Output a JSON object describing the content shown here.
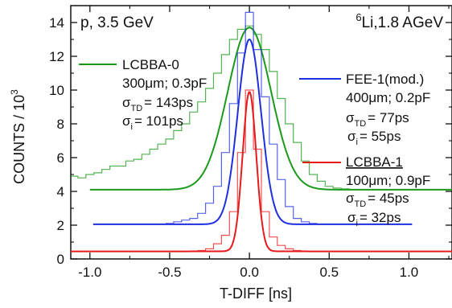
{
  "chart_data": {
    "type": "line",
    "title": "",
    "xlabel": "T-DIFF [ns]",
    "ylabel": "COUNTS / 10",
    "ylabel_exponent": "3",
    "xlim": [
      -1.12,
      1.27
    ],
    "ylim": [
      0,
      15
    ],
    "x_ticks": [
      -1.0,
      -0.5,
      0.0,
      0.5,
      1.0
    ],
    "x_tick_labels": [
      "-1.0",
      "-0.5",
      "0.0",
      "0.5",
      "1.0"
    ],
    "y_ticks": [
      0,
      2,
      4,
      6,
      8,
      10,
      12,
      14
    ],
    "y_tick_labels": [
      "0",
      "2",
      "4",
      "6",
      "8",
      "10",
      "12",
      "14"
    ],
    "grid": false,
    "series": [
      {
        "name": "LCBBA-0",
        "color": "#1a9a1a",
        "baseline": 4.1,
        "fit_peak": 13.7,
        "fit_center": 0.0,
        "fit_sigma_ns": 0.143,
        "fit_x_range": [
          -1.0,
          1.27
        ],
        "hist_x": [
          -1.1,
          -1.05,
          -1.0,
          -0.95,
          -0.9,
          -0.85,
          -0.8,
          -0.75,
          -0.7,
          -0.65,
          -0.6,
          -0.55,
          -0.5,
          -0.45,
          -0.4,
          -0.35,
          -0.3,
          -0.25,
          -0.2,
          -0.15,
          -0.1,
          -0.05,
          0.0,
          0.05,
          0.1,
          0.15,
          0.2,
          0.25,
          0.3,
          0.35,
          0.4,
          0.45,
          0.5,
          0.55,
          0.6,
          0.65,
          0.7,
          0.75,
          0.8,
          0.85,
          0.9,
          0.95,
          1.0,
          1.05,
          1.1,
          1.15,
          1.2,
          1.27
        ],
        "hist_y": [
          4.9,
          4.8,
          5.0,
          5.1,
          5.3,
          5.5,
          5.5,
          5.8,
          5.9,
          6.2,
          6.5,
          6.8,
          7.1,
          7.6,
          8.0,
          8.7,
          9.3,
          10.1,
          11.0,
          12.1,
          13.0,
          13.6,
          13.8,
          13.3,
          12.4,
          11.1,
          9.5,
          8.0,
          6.9,
          5.8,
          5.0,
          4.6,
          4.3,
          4.2,
          4.15,
          4.1,
          4.1,
          4.1,
          4.1,
          4.1,
          4.1,
          4.1,
          4.1,
          4.1,
          4.1,
          4.1,
          4.1,
          4.1
        ]
      },
      {
        "name": "FEE-1(mod.)",
        "color": "#1f2ee0",
        "baseline": 2.05,
        "fit_peak": 13.0,
        "fit_center": 0.0,
        "fit_sigma_ns": 0.077,
        "fit_x_range": [
          -0.98,
          1.02
        ],
        "hist_x": [
          -0.5,
          -0.45,
          -0.4,
          -0.35,
          -0.3,
          -0.25,
          -0.2,
          -0.15,
          -0.1,
          -0.05,
          0.0,
          0.05,
          0.1,
          0.15,
          0.2,
          0.25,
          0.3,
          0.35,
          0.4
        ],
        "hist_y": [
          2.1,
          2.2,
          2.3,
          2.4,
          2.7,
          3.3,
          4.3,
          6.3,
          9.2,
          12.2,
          14.6,
          12.4,
          9.6,
          6.8,
          4.7,
          3.1,
          2.4,
          2.2,
          2.1
        ]
      },
      {
        "name": "LCBBA-1",
        "color": "#e61a1a",
        "baseline": 0.45,
        "fit_peak": 9.9,
        "fit_center": 0.0,
        "fit_sigma_ns": 0.045,
        "fit_x_range": [
          -1.12,
          1.27
        ],
        "hist_x": [
          -0.3,
          -0.25,
          -0.2,
          -0.15,
          -0.1,
          -0.05,
          0.0,
          0.05,
          0.1,
          0.15,
          0.2,
          0.25,
          0.3
        ],
        "hist_y": [
          0.5,
          0.6,
          0.9,
          1.4,
          2.8,
          6.3,
          10.0,
          6.5,
          2.8,
          1.3,
          0.8,
          0.6,
          0.5
        ]
      }
    ],
    "annotations": {
      "top_left": "p, 3.5 GeV",
      "top_right_sup": "6",
      "top_right": "Li,1.8 AGeV",
      "green_name": "LCBBA-0",
      "green_params": "300μm; 0.3pF",
      "green_sigma_td": "= 143ps",
      "green_sigma_i": "= 101ps",
      "blue_name": "FEE-1(mod.)",
      "blue_params": "400μm; 0.2pF",
      "blue_sigma_td": "= 77ps",
      "blue_sigma_i": "= 55ps",
      "red_name": "LCBBA-1",
      "red_params": "100μm; 0.9pF",
      "red_sigma_td": "= 45ps",
      "red_sigma_i": "= 32ps",
      "sigma_symbol": "σ",
      "sub_td": "TD",
      "sub_i": "i"
    }
  }
}
